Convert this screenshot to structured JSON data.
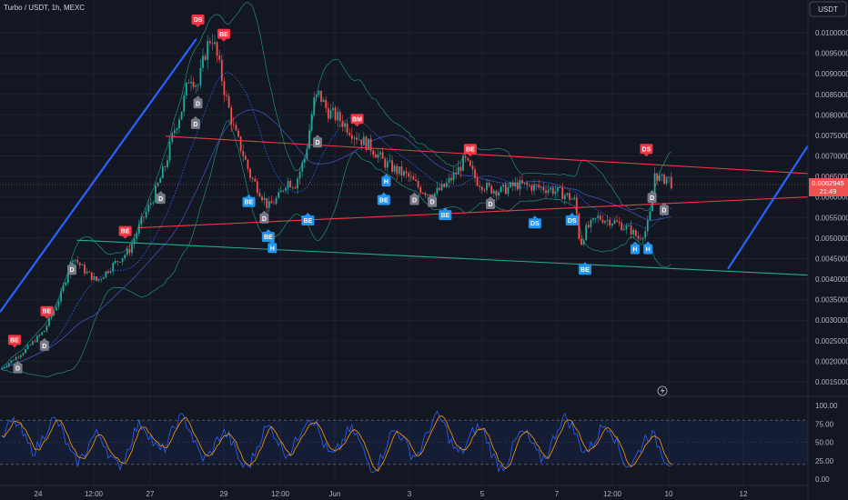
{
  "header": {
    "symbol_title": "Turbo / USDT, 1h, MEXC",
    "currency_button": "USDT"
  },
  "price_axis": {
    "ticks": [
      "0.0100000",
      "0.0095000",
      "0.0090000",
      "0.0085000",
      "0.0080000",
      "0.0075000",
      "0.0070000",
      "0.0065000",
      "0.0060000",
      "0.0055000",
      "0.0050000",
      "0.0045000",
      "0.0040000",
      "0.0035000",
      "0.0030000",
      "0.0025000",
      "0.0020000",
      "0.0015000"
    ],
    "current_price_label": "0.0062945",
    "countdown_label": "21:49"
  },
  "time_axis": {
    "ticks": [
      "24",
      "12:00",
      "27",
      "29",
      "12:00",
      "Jun",
      "3",
      "5",
      "7",
      "12:00",
      "10",
      "12"
    ]
  },
  "rsi": {
    "ticks": [
      "100.00",
      "75.00",
      "50.00",
      "25.00",
      "0.00"
    ],
    "upper_band": 80,
    "lower_band": 20
  },
  "chart_data": {
    "type": "candlestick",
    "title": "Turbo / USDT, 1h, MEXC",
    "ylim": [
      0.0012,
      0.0104
    ],
    "x_ticks": [
      "24",
      "12:00",
      "27",
      "29",
      "12:00",
      "Jun",
      "3",
      "5",
      "7",
      "12:00",
      "10",
      "12"
    ],
    "price_path": [
      [
        0.0,
        0.0018
      ],
      [
        0.03,
        0.00225
      ],
      [
        0.055,
        0.00275
      ],
      [
        0.075,
        0.0036
      ],
      [
        0.09,
        0.00455
      ],
      [
        0.105,
        0.0042
      ],
      [
        0.12,
        0.00395
      ],
      [
        0.14,
        0.00435
      ],
      [
        0.16,
        0.0047
      ],
      [
        0.175,
        0.0054
      ],
      [
        0.19,
        0.006
      ],
      [
        0.205,
        0.0068
      ],
      [
        0.215,
        0.0076
      ],
      [
        0.225,
        0.00815
      ],
      [
        0.235,
        0.009
      ],
      [
        0.245,
        0.0087
      ],
      [
        0.255,
        0.0096
      ],
      [
        0.262,
        0.00995
      ],
      [
        0.27,
        0.0093
      ],
      [
        0.28,
        0.0084
      ],
      [
        0.29,
        0.0076
      ],
      [
        0.3,
        0.0071
      ],
      [
        0.31,
        0.0065
      ],
      [
        0.32,
        0.0062
      ],
      [
        0.332,
        0.00575
      ],
      [
        0.345,
        0.006
      ],
      [
        0.355,
        0.0064
      ],
      [
        0.365,
        0.0063
      ],
      [
        0.378,
        0.007
      ],
      [
        0.388,
        0.0083
      ],
      [
        0.395,
        0.0085
      ],
      [
        0.405,
        0.0081
      ],
      [
        0.42,
        0.0079
      ],
      [
        0.44,
        0.0075
      ],
      [
        0.46,
        0.0072
      ],
      [
        0.475,
        0.00685
      ],
      [
        0.49,
        0.00665
      ],
      [
        0.505,
        0.0065
      ],
      [
        0.52,
        0.0062
      ],
      [
        0.535,
        0.00605
      ],
      [
        0.55,
        0.00625
      ],
      [
        0.565,
        0.0066
      ],
      [
        0.575,
        0.0069
      ],
      [
        0.59,
        0.0064
      ],
      [
        0.605,
        0.0062
      ],
      [
        0.62,
        0.00615
      ],
      [
        0.64,
        0.0063
      ],
      [
        0.66,
        0.00625
      ],
      [
        0.68,
        0.0062
      ],
      [
        0.7,
        0.00605
      ],
      [
        0.712,
        0.0059
      ],
      [
        0.718,
        0.0048
      ],
      [
        0.725,
        0.0052
      ],
      [
        0.74,
        0.0055
      ],
      [
        0.76,
        0.0054
      ],
      [
        0.78,
        0.0052
      ],
      [
        0.79,
        0.005
      ],
      [
        0.8,
        0.0052
      ],
      [
        0.806,
        0.0057
      ],
      [
        0.81,
        0.0066
      ],
      [
        0.818,
        0.0064
      ],
      [
        0.826,
        0.0065
      ],
      [
        0.832,
        0.0063
      ]
    ],
    "signals": [
      {
        "label": "DS",
        "kind": "sell",
        "x": 0.245,
        "y": 0.0102
      },
      {
        "label": "BE",
        "kind": "sell",
        "x": 0.277,
        "y": 0.00985
      },
      {
        "label": "DS",
        "kind": "sell",
        "x": 0.8,
        "y": 0.00705
      },
      {
        "label": "BE",
        "kind": "sell",
        "x": 0.582,
        "y": 0.00705
      },
      {
        "label": "BE",
        "kind": "sell",
        "x": 0.155,
        "y": 0.00505
      },
      {
        "label": "BE",
        "kind": "sell",
        "x": 0.058,
        "y": 0.0031
      },
      {
        "label": "BE",
        "kind": "sell",
        "x": 0.018,
        "y": 0.0024
      },
      {
        "label": "BM",
        "kind": "sell",
        "x": 0.442,
        "y": 0.00778
      },
      {
        "label": "BE",
        "kind": "buy",
        "x": 0.308,
        "y": 0.006
      },
      {
        "label": "BE",
        "kind": "buy",
        "x": 0.332,
        "y": 0.00515
      },
      {
        "label": "H",
        "kind": "buy",
        "x": 0.337,
        "y": 0.00488
      },
      {
        "label": "BE",
        "kind": "buy",
        "x": 0.381,
        "y": 0.00555
      },
      {
        "label": "H",
        "kind": "buy",
        "x": 0.478,
        "y": 0.0065
      },
      {
        "label": "BE",
        "kind": "buy",
        "x": 0.475,
        "y": 0.00605
      },
      {
        "label": "BE",
        "kind": "buy",
        "x": 0.551,
        "y": 0.00568
      },
      {
        "label": "DS",
        "kind": "buy",
        "x": 0.662,
        "y": 0.00548
      },
      {
        "label": "DS",
        "kind": "buy",
        "x": 0.708,
        "y": 0.00555
      },
      {
        "label": "BE",
        "kind": "buy",
        "x": 0.724,
        "y": 0.00435
      },
      {
        "label": "H",
        "kind": "buy",
        "x": 0.786,
        "y": 0.00485
      },
      {
        "label": "H",
        "kind": "buy",
        "x": 0.802,
        "y": 0.00485
      },
      {
        "label": "D",
        "kind": "neutral",
        "x": 0.245,
        "y": 0.0084
      },
      {
        "label": "D",
        "kind": "neutral",
        "x": 0.242,
        "y": 0.0079
      },
      {
        "label": "D",
        "kind": "neutral",
        "x": 0.199,
        "y": 0.00608
      },
      {
        "label": "D",
        "kind": "neutral",
        "x": 0.089,
        "y": 0.00435
      },
      {
        "label": "D",
        "kind": "neutral",
        "x": 0.055,
        "y": 0.0025
      },
      {
        "label": "D",
        "kind": "neutral",
        "x": 0.022,
        "y": 0.00195
      },
      {
        "label": "D",
        "kind": "neutral",
        "x": 0.327,
        "y": 0.0056
      },
      {
        "label": "D",
        "kind": "neutral",
        "x": 0.393,
        "y": 0.00745
      },
      {
        "label": "D",
        "kind": "neutral",
        "x": 0.513,
        "y": 0.00605
      },
      {
        "label": "D",
        "kind": "neutral",
        "x": 0.535,
        "y": 0.006
      },
      {
        "label": "D",
        "kind": "neutral",
        "x": 0.607,
        "y": 0.00595
      },
      {
        "label": "D",
        "kind": "neutral",
        "x": 0.807,
        "y": 0.0061
      },
      {
        "label": "D",
        "kind": "neutral",
        "x": 0.822,
        "y": 0.0058
      }
    ],
    "trendlines": [
      {
        "color": "#2962ff",
        "points": [
          [
            0.0,
            0.0032
          ],
          [
            0.243,
            0.00985
          ]
        ]
      },
      {
        "color": "#f23645",
        "points": [
          [
            0.205,
            0.00748
          ],
          [
            1.0,
            0.00657
          ]
        ]
      },
      {
        "color": "#f23645",
        "points": [
          [
            0.17,
            0.00525
          ],
          [
            1.0,
            0.006
          ]
        ]
      },
      {
        "color": "#22ab94",
        "points": [
          [
            0.095,
            0.00495
          ],
          [
            1.0,
            0.0041
          ]
        ]
      },
      {
        "color": "#2962ff",
        "points": [
          [
            0.901,
            0.00425
          ],
          [
            1.0,
            0.00725
          ]
        ]
      }
    ]
  },
  "colors": {
    "up": "#26a69a",
    "down": "#ef5350",
    "sell_marker": "#f23645",
    "buy_marker": "#2196f3",
    "neutral_marker": "#787b86",
    "rsi_line": "#2962ff",
    "rsi_ma": "#ff9800"
  },
  "icons": {
    "replay": "lightning-icon"
  }
}
